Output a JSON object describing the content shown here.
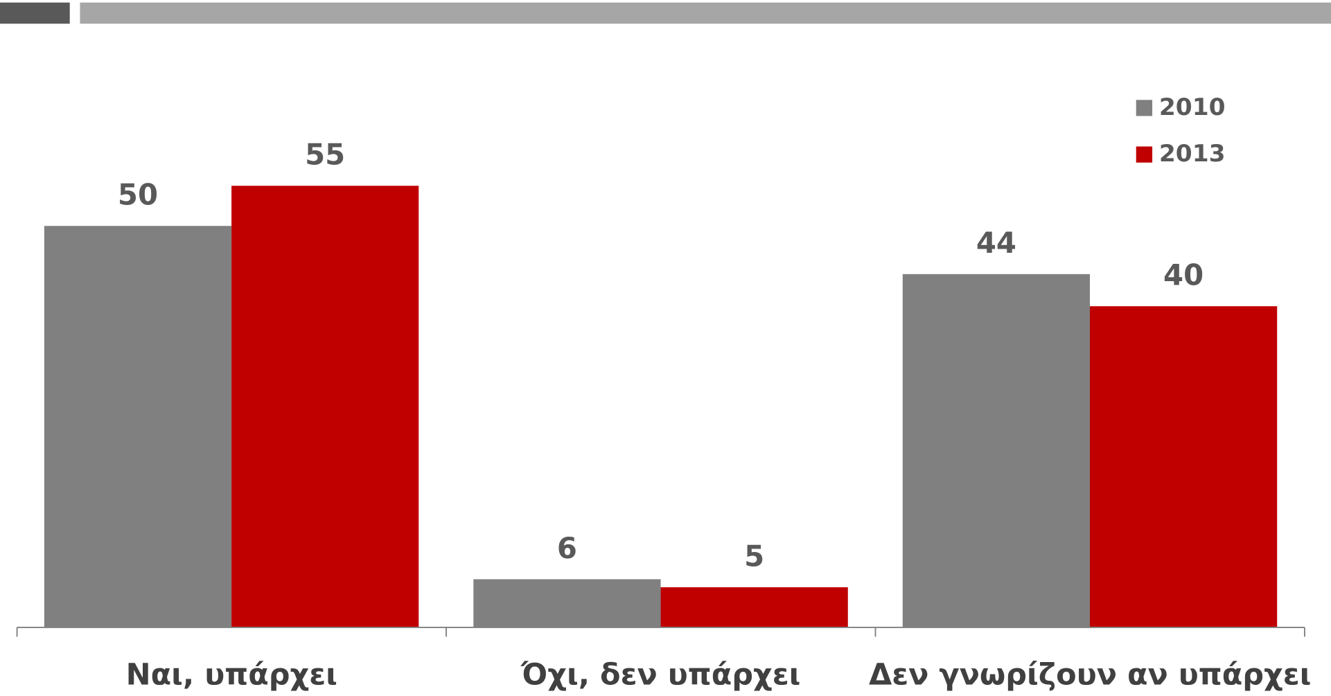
{
  "chart_data": {
    "type": "bar",
    "categories": [
      "Ναι, υπάρχει",
      "Όχι, δεν υπάρχει",
      "Δεν γνωρίζουν αν υπάρχει"
    ],
    "series": [
      {
        "name": "2010",
        "color": "#808080",
        "values": [
          50,
          6,
          44
        ]
      },
      {
        "name": "2013",
        "color": "#c00000",
        "values": [
          55,
          5,
          40
        ]
      }
    ],
    "ylim": [
      0,
      60
    ],
    "legend": "top-right"
  }
}
